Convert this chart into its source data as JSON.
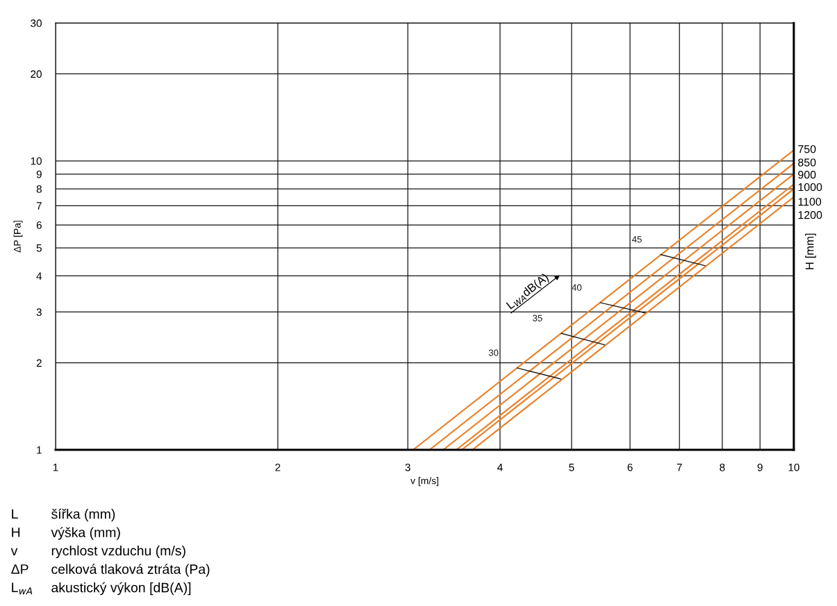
{
  "chart_data": {
    "type": "line",
    "xlabel": "v [m/s]",
    "ylabel": "ΔP [Pa]",
    "y2label": "H [mm]",
    "log": "xy",
    "grid": true,
    "legend": false,
    "marker": "none",
    "line_style": "solid",
    "xlim": [
      1,
      10
    ],
    "ylim": [
      1,
      30
    ],
    "xticks": [
      1,
      2,
      3,
      4,
      5,
      6,
      7,
      8,
      9,
      10
    ],
    "yticks": [
      1,
      2,
      3,
      4,
      5,
      6,
      7,
      8,
      9,
      10,
      20,
      30
    ],
    "series": [
      {
        "color": "#e8832a",
        "x": [
          3.05,
          10
        ],
        "values": [
          1,
          10.9
        ]
      },
      {
        "color": "#e8832a",
        "x": [
          3.21,
          10
        ],
        "values": [
          1,
          9.8
        ]
      },
      {
        "color": "#e8832a",
        "x": [
          3.35,
          10
        ],
        "values": [
          1,
          9.0
        ]
      },
      {
        "color": "#e8832a",
        "x": [
          3.49,
          10
        ],
        "values": [
          1,
          8.3
        ]
      },
      {
        "color": "#e8832a",
        "x": [
          3.55,
          10
        ],
        "values": [
          1,
          8.0
        ]
      },
      {
        "color": "#e8832a",
        "x": [
          3.67,
          10
        ],
        "values": [
          1,
          7.5
        ]
      },
      {
        "name": "30",
        "color": "#1a1a1a",
        "x": [
          4.22,
          4.83
        ],
        "values": [
          1.92,
          1.76
        ]
      },
      {
        "name": "35",
        "color": "#1a1a1a",
        "x": [
          4.84,
          5.54
        ],
        "values": [
          2.53,
          2.31
        ]
      },
      {
        "name": "40",
        "color": "#1a1a1a",
        "x": [
          5.47,
          6.28
        ],
        "values": [
          3.23,
          2.98
        ]
      },
      {
        "name": "45",
        "color": "#1a1a1a",
        "x": [
          6.6,
          7.58
        ],
        "values": [
          4.74,
          4.34
        ]
      }
    ],
    "annotations": [
      "L$_{WA}$dB(A)",
      "L\tšířka (mm)",
      "H\tvýška (mm)",
      "v\trychlost vzduchu (m/s)",
      "ΔP\tcelková tlaková ztráta (Pa)",
      "L$_{wA}$\takustický výkon [dB(A)]",
      "750",
      "850",
      "900",
      "1000",
      "1100",
      "1200"
    ]
  }
}
